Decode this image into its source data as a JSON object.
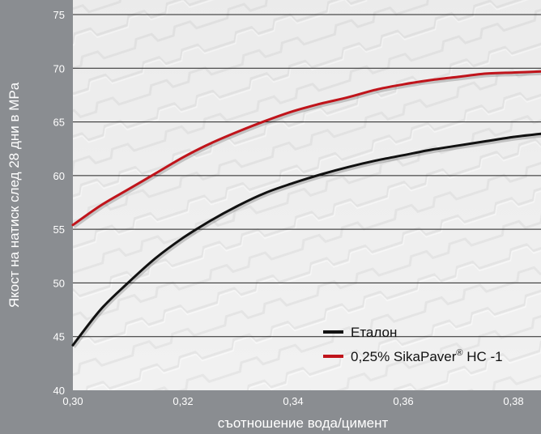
{
  "chart_data": {
    "type": "line",
    "xlabel": "съотношение вода/цимент",
    "ylabel": "Якост на натиск след 28 дни в MPa",
    "xlim": [
      0.3,
      0.385
    ],
    "ylim": [
      40,
      75
    ],
    "x_ticks": [
      0.3,
      0.32,
      0.34,
      0.36,
      0.38
    ],
    "x_tick_labels": [
      "0,30",
      "0,32",
      "0,34",
      "0,36",
      "0,38"
    ],
    "y_ticks": [
      40,
      45,
      50,
      55,
      60,
      65,
      70,
      75
    ],
    "y_tick_labels": [
      "40",
      "45",
      "50",
      "55",
      "60",
      "65",
      "70",
      "75"
    ],
    "grid": "horizontal",
    "legend_position": "bottom-right",
    "series": [
      {
        "name": "Еталон",
        "color": "#111111",
        "x": [
          0.3,
          0.305,
          0.31,
          0.315,
          0.32,
          0.325,
          0.33,
          0.335,
          0.34,
          0.345,
          0.35,
          0.355,
          0.36,
          0.365,
          0.37,
          0.375,
          0.38,
          0.385
        ],
        "y": [
          44.2,
          47.5,
          50.0,
          52.3,
          54.2,
          55.8,
          57.2,
          58.4,
          59.3,
          60.1,
          60.8,
          61.4,
          61.9,
          62.4,
          62.8,
          63.2,
          63.6,
          63.9
        ]
      },
      {
        "name": "0,25% SikaPaver® HC-1",
        "color": "#c0141b",
        "x": [
          0.3,
          0.305,
          0.31,
          0.315,
          0.32,
          0.325,
          0.33,
          0.335,
          0.34,
          0.345,
          0.35,
          0.355,
          0.36,
          0.365,
          0.37,
          0.375,
          0.38,
          0.385
        ],
        "y": [
          55.4,
          57.2,
          58.7,
          60.2,
          61.7,
          63.0,
          64.1,
          65.1,
          66.0,
          66.7,
          67.3,
          68.0,
          68.5,
          68.9,
          69.2,
          69.5,
          69.6,
          69.7
        ]
      }
    ]
  },
  "legend": {
    "items": [
      {
        "label": "Еталон",
        "color": "#111111"
      },
      {
        "label": "0,25% SikaPaver® HC -1",
        "label_main": "0,25% SikaPaver",
        "label_sup": "®",
        "label_tail": " HC -1",
        "color": "#c0141b"
      }
    ]
  },
  "colors": {
    "axis_band": "#8a8d91",
    "plot_background": "#efefef",
    "grid": "#222222"
  }
}
